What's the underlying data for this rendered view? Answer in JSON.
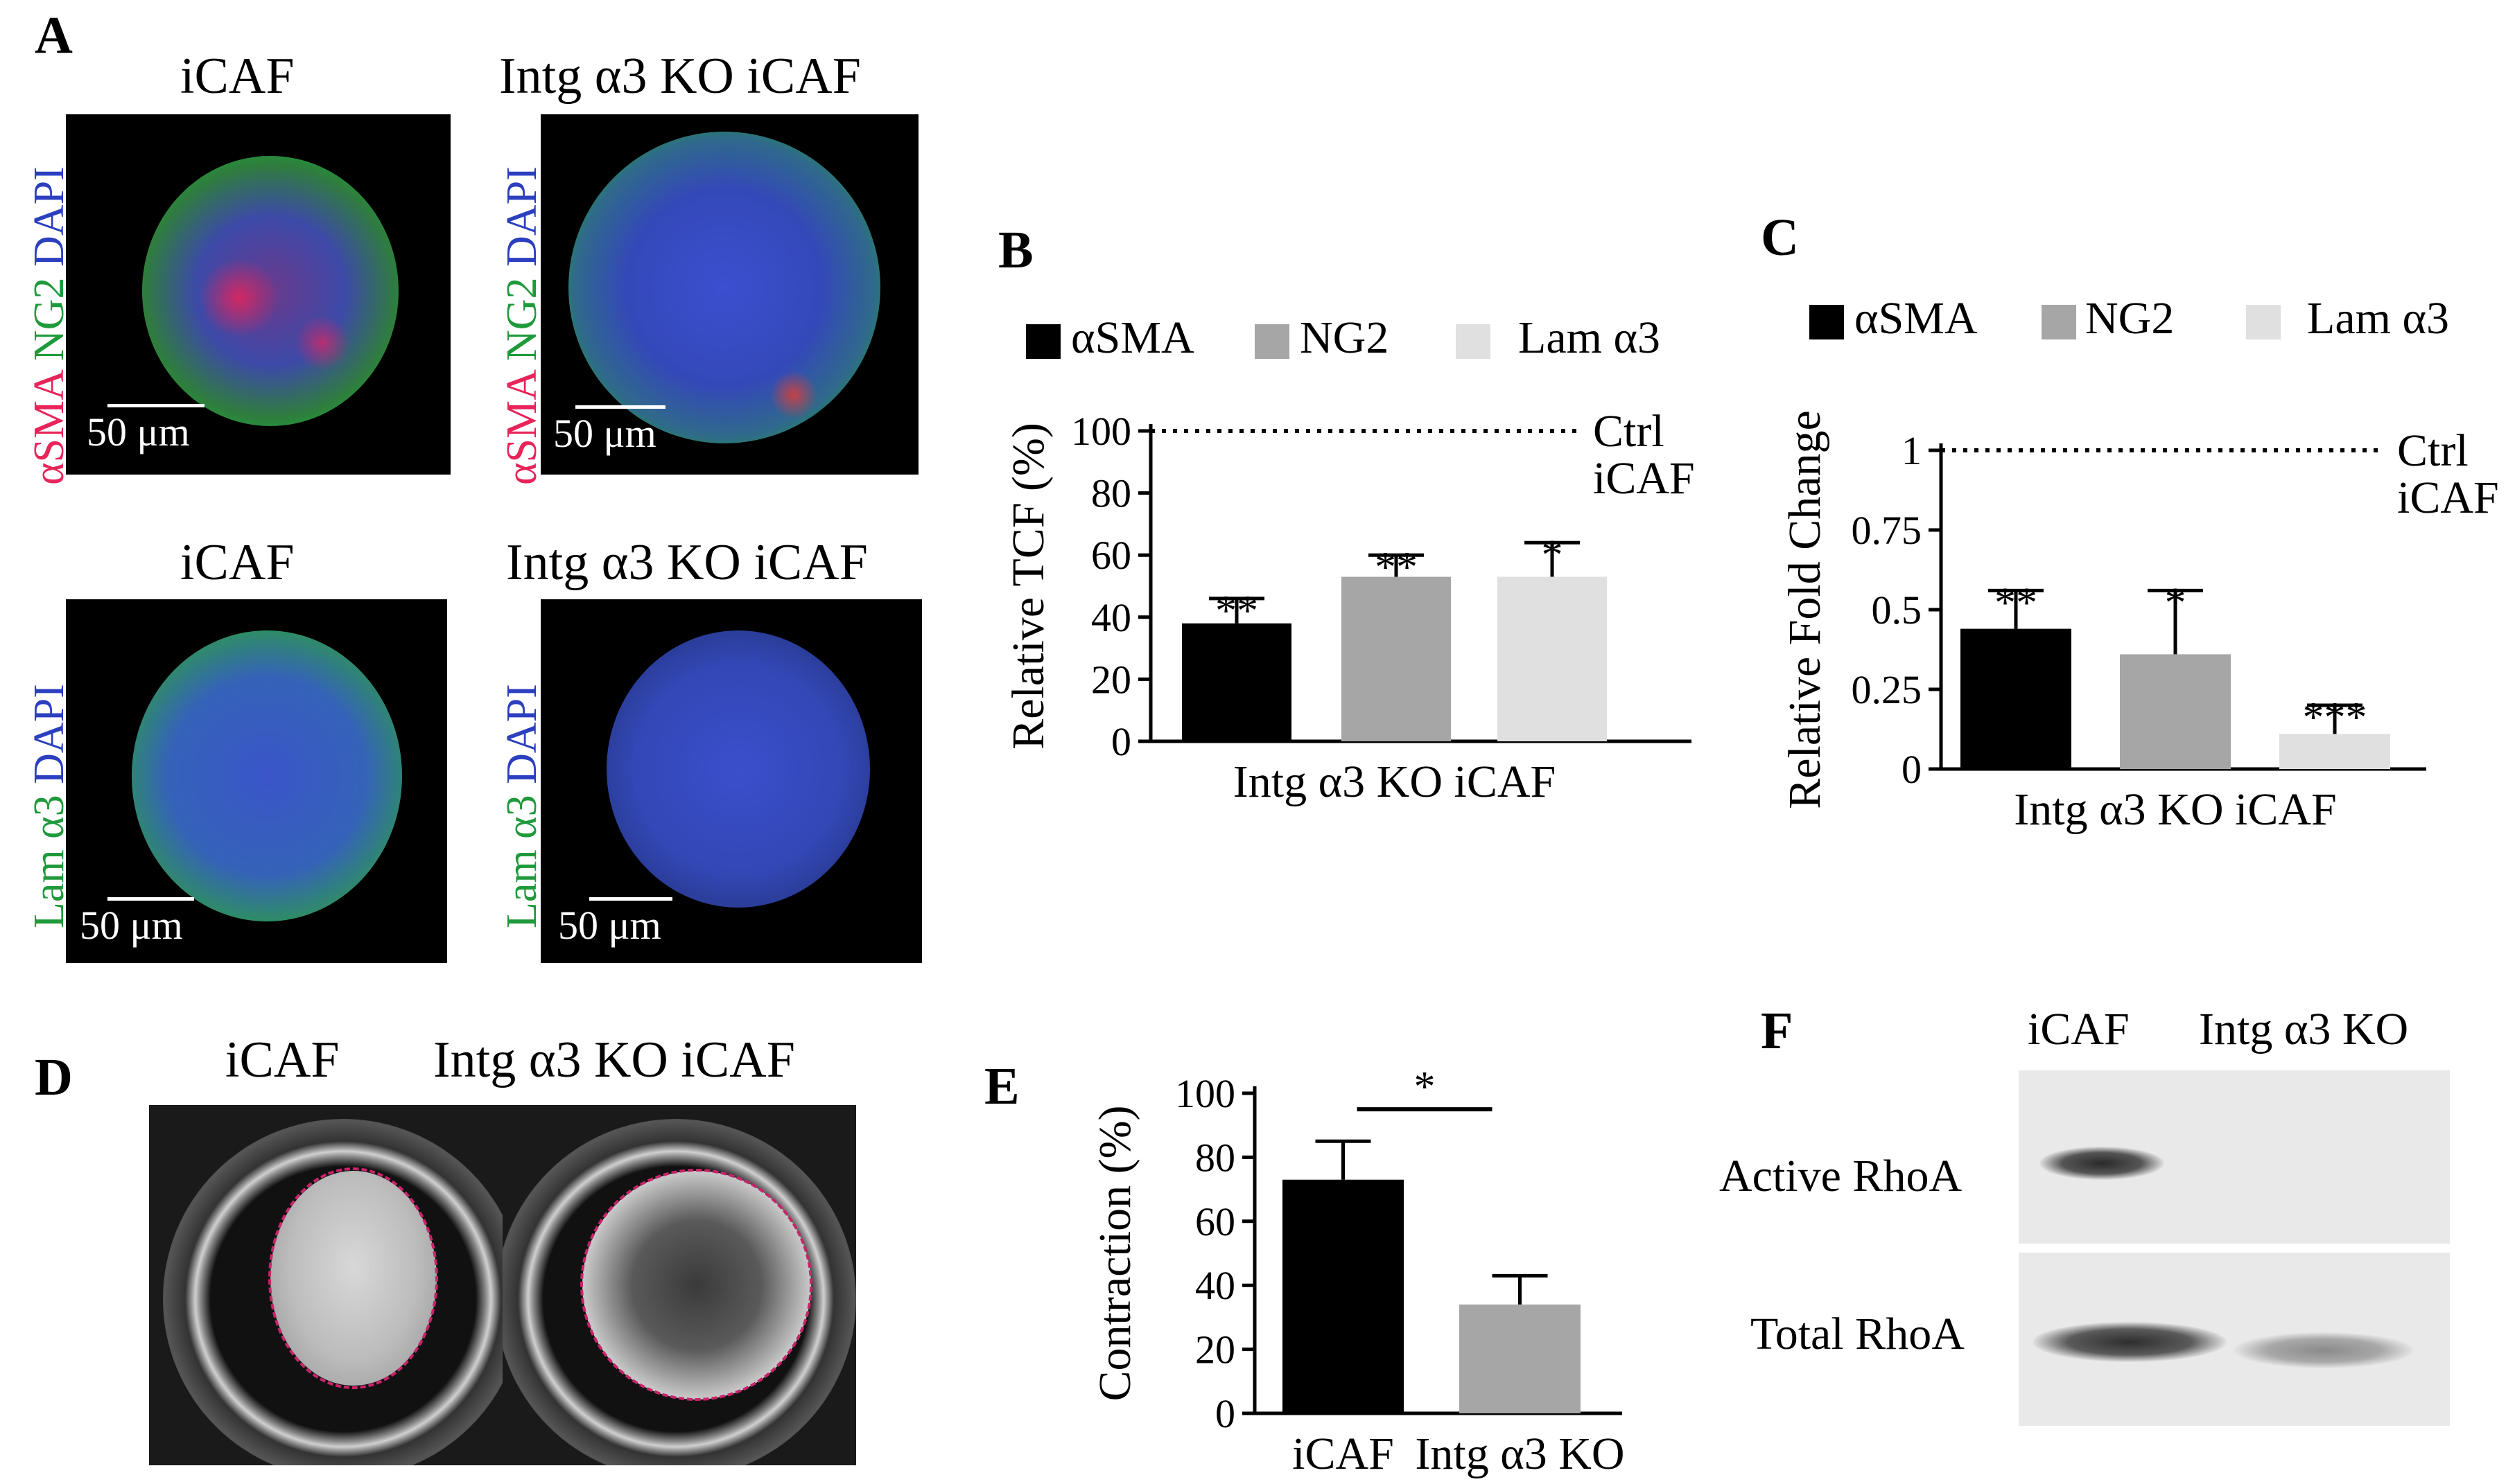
{
  "panels": {
    "A": {
      "letter": "A",
      "titles": [
        "iCAF",
        "Intg α3 KO iCAF",
        "iCAF",
        "Intg α3 KO iCAF"
      ],
      "row1_stain": [
        "αSMA",
        "NG2",
        "DAPI"
      ],
      "row2_stain": [
        "Lam α3",
        "DAPI"
      ],
      "scale_label": "50 μm"
    },
    "B": {
      "letter": "B"
    },
    "C": {
      "letter": "C"
    },
    "D": {
      "letter": "D",
      "titles": [
        "iCAF",
        "Intg α3 KO iCAF"
      ]
    },
    "E": {
      "letter": "E"
    },
    "F": {
      "letter": "F",
      "lanes": [
        "iCAF",
        "Intg α3 KO"
      ],
      "rows": [
        "Active RhoA",
        "Total RhoA"
      ]
    }
  },
  "colors": {
    "black_bar": "#000000",
    "mid_gray_bar": "#a6a6a6",
    "light_gray_bar": "#e0e0e0",
    "alpha_sma": "#e8245a",
    "ng2": "#1f9a3b",
    "dapi": "#2b3fbf",
    "outline": "#c8246a"
  },
  "chart_data": [
    {
      "id": "B",
      "type": "bar",
      "categories": [
        "Intg α3 KO iCAF"
      ],
      "series": [
        {
          "name": "αSMA",
          "values": [
            38
          ],
          "error": [
            8
          ],
          "sig": "**"
        },
        {
          "name": "NG2",
          "values": [
            53
          ],
          "error": [
            7
          ],
          "sig": "**"
        },
        {
          "name": "Lam α3",
          "values": [
            53
          ],
          "error": [
            11
          ],
          "sig": "*"
        }
      ],
      "xlabel": "Intg α3 KO iCAF",
      "ylabel": "Relative TCF (%)",
      "ylim": [
        0,
        100
      ],
      "yticks": [
        0,
        20,
        40,
        60,
        80,
        100
      ],
      "reference": {
        "value": 100,
        "label_lines": [
          "Ctrl",
          "iCAF"
        ]
      },
      "legend": "top"
    },
    {
      "id": "C",
      "type": "bar",
      "categories": [
        "Intg α3 KO iCAF"
      ],
      "series": [
        {
          "name": "αSMA",
          "values": [
            0.44
          ],
          "error": [
            0.12
          ],
          "sig": "**"
        },
        {
          "name": "NG2",
          "values": [
            0.36
          ],
          "error": [
            0.2
          ],
          "sig": "*"
        },
        {
          "name": "Lam α3",
          "values": [
            0.11
          ],
          "error": [
            0.09
          ],
          "sig": "***"
        }
      ],
      "xlabel": "Intg α3 KO iCAF",
      "ylabel": "Relative Fold Change",
      "ylim": [
        0,
        1
      ],
      "yticks": [
        "0",
        "0.25",
        "0.5",
        "0.75",
        "1"
      ],
      "reference": {
        "value": 1,
        "label_lines": [
          "Ctrl",
          "iCAF"
        ]
      },
      "legend": "top"
    },
    {
      "id": "E",
      "type": "bar",
      "categories": [
        "iCAF",
        "Intg α3 KO"
      ],
      "series": [
        {
          "name": "",
          "values": [
            73,
            34
          ],
          "error": [
            12,
            9
          ]
        }
      ],
      "xlabel": "",
      "ylabel": "Contraction (%)",
      "ylim": [
        0,
        100
      ],
      "yticks": [
        0,
        20,
        40,
        60,
        80,
        100
      ],
      "significance": "*"
    }
  ]
}
